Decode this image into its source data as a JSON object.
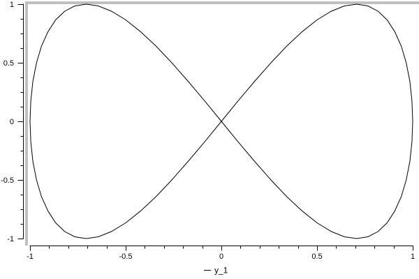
{
  "window": {
    "background": "#ffffff"
  },
  "frame": {
    "color": "#c0c0c0"
  },
  "chart_data": {
    "type": "line",
    "title": "",
    "xlabel": "",
    "ylabel": "",
    "xlim": [
      -1,
      1
    ],
    "ylim": [
      -1,
      1
    ],
    "grid": false,
    "axis_color": "#000000",
    "x_ticks": {
      "values": [
        -1,
        -0.5,
        0,
        0.5,
        1
      ],
      "labels": [
        "-1",
        "-0.5",
        "0",
        "0.5",
        "1"
      ],
      "minor_per_interval": 4
    },
    "y_ticks": {
      "values": [
        1,
        0.5,
        0,
        -0.5,
        -1
      ],
      "labels": [
        "1",
        "0.5",
        "0",
        "-0.5",
        "-1"
      ],
      "minor_per_interval": 3
    },
    "legend": {
      "position": "bottom-center",
      "entries": [
        {
          "sample": "line-dash",
          "label": "y_1",
          "color": "#000000"
        }
      ]
    },
    "series": [
      {
        "name": "y_1",
        "color": "#000000",
        "description": "Lissajous figure-eight: x=sin(t), y=sin(2t), t in [0, 2pi]",
        "points": [
          [
            0,
            0
          ],
          [
            0.087,
            0.174
          ],
          [
            0.174,
            0.342
          ],
          [
            0.259,
            0.5
          ],
          [
            0.342,
            0.643
          ],
          [
            0.423,
            0.766
          ],
          [
            0.5,
            0.866
          ],
          [
            0.574,
            0.94
          ],
          [
            0.643,
            0.985
          ],
          [
            0.707,
            1
          ],
          [
            0.766,
            0.985
          ],
          [
            0.819,
            0.94
          ],
          [
            0.866,
            0.866
          ],
          [
            0.906,
            0.766
          ],
          [
            0.94,
            0.643
          ],
          [
            0.966,
            0.5
          ],
          [
            0.985,
            0.342
          ],
          [
            0.996,
            0.174
          ],
          [
            1,
            0
          ],
          [
            0.996,
            -0.174
          ],
          [
            0.985,
            -0.342
          ],
          [
            0.966,
            -0.5
          ],
          [
            0.94,
            -0.643
          ],
          [
            0.906,
            -0.766
          ],
          [
            0.866,
            -0.866
          ],
          [
            0.819,
            -0.94
          ],
          [
            0.766,
            -0.985
          ],
          [
            0.707,
            -1
          ],
          [
            0.643,
            -0.985
          ],
          [
            0.574,
            -0.94
          ],
          [
            0.5,
            -0.866
          ],
          [
            0.423,
            -0.766
          ],
          [
            0.342,
            -0.643
          ],
          [
            0.259,
            -0.5
          ],
          [
            0.174,
            -0.342
          ],
          [
            0.087,
            -0.174
          ],
          [
            0,
            0
          ],
          [
            -0.087,
            0.174
          ],
          [
            -0.174,
            0.342
          ],
          [
            -0.259,
            0.5
          ],
          [
            -0.342,
            0.643
          ],
          [
            -0.423,
            0.766
          ],
          [
            -0.5,
            0.866
          ],
          [
            -0.574,
            0.94
          ],
          [
            -0.643,
            0.985
          ],
          [
            -0.707,
            1
          ],
          [
            -0.766,
            0.985
          ],
          [
            -0.819,
            0.94
          ],
          [
            -0.866,
            0.866
          ],
          [
            -0.906,
            0.766
          ],
          [
            -0.94,
            0.643
          ],
          [
            -0.966,
            0.5
          ],
          [
            -0.985,
            0.342
          ],
          [
            -0.996,
            0.174
          ],
          [
            -1,
            0
          ],
          [
            -0.996,
            -0.174
          ],
          [
            -0.985,
            -0.342
          ],
          [
            -0.966,
            -0.5
          ],
          [
            -0.94,
            -0.643
          ],
          [
            -0.906,
            -0.766
          ],
          [
            -0.866,
            -0.866
          ],
          [
            -0.819,
            -0.94
          ],
          [
            -0.766,
            -0.985
          ],
          [
            -0.707,
            -1
          ],
          [
            -0.643,
            -0.985
          ],
          [
            -0.574,
            -0.94
          ],
          [
            -0.5,
            -0.866
          ],
          [
            -0.423,
            -0.766
          ],
          [
            -0.342,
            -0.643
          ],
          [
            -0.259,
            -0.5
          ],
          [
            -0.174,
            -0.342
          ],
          [
            -0.087,
            -0.174
          ],
          [
            0,
            0
          ]
        ]
      }
    ]
  }
}
